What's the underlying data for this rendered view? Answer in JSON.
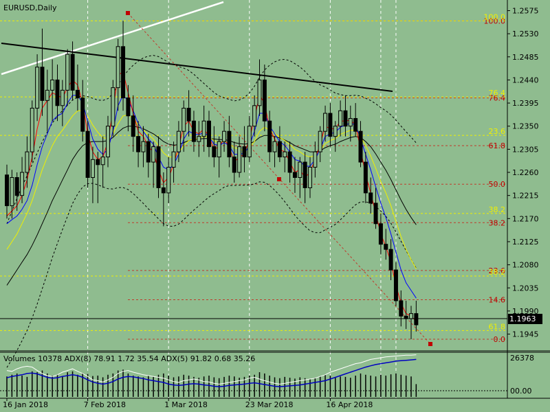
{
  "colors": {
    "background": "#8fbc8f",
    "grid": "#ffffff",
    "candle": "#000000",
    "fib_red": "#c0392b",
    "fib_yellow": "#f0f000",
    "ma_red": "#ff0000",
    "ma_blue": "#0000ff",
    "ma_yellow": "#f0f000",
    "ma_black": "#000000",
    "trend_white": "#ffffff",
    "volume_white": "#ffffff",
    "volume_blue": "#0000c0"
  },
  "chart_data": {
    "type": "candlestick",
    "symbol_label": "EURUSD,Daily",
    "price_axis": {
      "min": 1.1923,
      "max": 1.2585,
      "ticks": [
        "1.2575",
        "1.2530",
        "1.2485",
        "1.2440",
        "1.2395",
        "1.2350",
        "1.2305",
        "1.2260",
        "1.2215",
        "1.2170",
        "1.2125",
        "1.2080",
        "1.2035",
        "1.1990",
        "1.1945"
      ]
    },
    "current_price": "1.1963",
    "date_labels": [
      {
        "text": "16 Jan 2018",
        "index": 0
      },
      {
        "text": "7 Feb 2018",
        "index": 16
      },
      {
        "text": "1 Mar 2018",
        "index": 32
      },
      {
        "text": "23 Mar 2018",
        "index": 48
      },
      {
        "text": "16 Apr 2018",
        "index": 64
      }
    ],
    "vertical_grid_indices": [
      16,
      32,
      48,
      64,
      74,
      77
    ],
    "candles": [
      [
        1.2255,
        1.2275,
        1.217,
        1.2195
      ],
      [
        1.2195,
        1.2265,
        1.217,
        1.225
      ],
      [
        1.225,
        1.226,
        1.2185,
        1.2215
      ],
      [
        1.2215,
        1.229,
        1.22,
        1.226
      ],
      [
        1.226,
        1.233,
        1.223,
        1.23
      ],
      [
        1.23,
        1.24,
        1.228,
        1.2385
      ],
      [
        1.2385,
        1.249,
        1.236,
        1.2465
      ],
      [
        1.2465,
        1.254,
        1.237,
        1.24
      ],
      [
        1.24,
        1.246,
        1.234,
        1.242
      ],
      [
        1.242,
        1.248,
        1.236,
        1.244
      ],
      [
        1.244,
        1.247,
        1.236,
        1.239
      ],
      [
        1.239,
        1.244,
        1.235,
        1.242
      ],
      [
        1.242,
        1.25,
        1.239,
        1.249
      ],
      [
        1.249,
        1.2515,
        1.24,
        1.242
      ],
      [
        1.242,
        1.247,
        1.238,
        1.2405
      ],
      [
        1.2405,
        1.244,
        1.232,
        1.234
      ],
      [
        1.234,
        1.236,
        1.223,
        1.225
      ],
      [
        1.225,
        1.231,
        1.22,
        1.2285
      ],
      [
        1.2285,
        1.23,
        1.22,
        1.2275
      ],
      [
        1.2275,
        1.233,
        1.223,
        1.229
      ],
      [
        1.229,
        1.237,
        1.227,
        1.235
      ],
      [
        1.235,
        1.244,
        1.233,
        1.2425
      ],
      [
        1.2425,
        1.252,
        1.238,
        1.2505
      ],
      [
        1.2505,
        1.2555,
        1.238,
        1.2405
      ],
      [
        1.2405,
        1.243,
        1.234,
        1.237
      ],
      [
        1.237,
        1.241,
        1.23,
        1.233
      ],
      [
        1.233,
        1.236,
        1.227,
        1.23
      ],
      [
        1.23,
        1.235,
        1.227,
        1.232
      ],
      [
        1.232,
        1.2335,
        1.225,
        1.228
      ],
      [
        1.228,
        1.232,
        1.223,
        1.231
      ],
      [
        1.231,
        1.233,
        1.221,
        1.223
      ],
      [
        1.223,
        1.226,
        1.2155,
        1.222
      ],
      [
        1.222,
        1.229,
        1.22,
        1.227
      ],
      [
        1.227,
        1.232,
        1.224,
        1.23
      ],
      [
        1.23,
        1.236,
        1.228,
        1.234
      ],
      [
        1.234,
        1.24,
        1.23,
        1.2385
      ],
      [
        1.2385,
        1.242,
        1.233,
        1.236
      ],
      [
        1.236,
        1.238,
        1.23,
        1.232
      ],
      [
        1.232,
        1.236,
        1.229,
        1.233
      ],
      [
        1.233,
        1.239,
        1.23,
        1.236
      ],
      [
        1.236,
        1.238,
        1.229,
        1.231
      ],
      [
        1.231,
        1.235,
        1.227,
        1.229
      ],
      [
        1.229,
        1.233,
        1.225,
        1.232
      ],
      [
        1.232,
        1.236,
        1.23,
        1.234
      ],
      [
        1.234,
        1.237,
        1.227,
        1.229
      ],
      [
        1.229,
        1.232,
        1.224,
        1.226
      ],
      [
        1.226,
        1.233,
        1.225,
        1.231
      ],
      [
        1.231,
        1.235,
        1.226,
        1.229
      ],
      [
        1.229,
        1.237,
        1.228,
        1.235
      ],
      [
        1.235,
        1.241,
        1.233,
        1.239
      ],
      [
        1.239,
        1.248,
        1.237,
        1.244
      ],
      [
        1.244,
        1.247,
        1.234,
        1.236
      ],
      [
        1.236,
        1.238,
        1.228,
        1.23
      ],
      [
        1.23,
        1.233,
        1.227,
        1.232
      ],
      [
        1.232,
        1.235,
        1.228,
        1.229
      ],
      [
        1.229,
        1.232,
        1.226,
        1.23
      ],
      [
        1.23,
        1.232,
        1.224,
        1.226
      ],
      [
        1.226,
        1.229,
        1.222,
        1.225
      ],
      [
        1.225,
        1.229,
        1.221,
        1.228
      ],
      [
        1.228,
        1.23,
        1.22,
        1.223
      ],
      [
        1.223,
        1.229,
        1.221,
        1.227
      ],
      [
        1.227,
        1.232,
        1.225,
        1.23
      ],
      [
        1.23,
        1.235,
        1.228,
        1.234
      ],
      [
        1.234,
        1.239,
        1.232,
        1.2375
      ],
      [
        1.2375,
        1.2395,
        1.231,
        1.233
      ],
      [
        1.233,
        1.236,
        1.23,
        1.235
      ],
      [
        1.235,
        1.24,
        1.233,
        1.238
      ],
      [
        1.238,
        1.241,
        1.233,
        1.235
      ],
      [
        1.235,
        1.239,
        1.232,
        1.2365
      ],
      [
        1.2365,
        1.2395,
        1.233,
        1.234
      ],
      [
        1.234,
        1.236,
        1.227,
        1.228
      ],
      [
        1.228,
        1.23,
        1.22,
        1.222
      ],
      [
        1.222,
        1.225,
        1.218,
        1.22
      ],
      [
        1.22,
        1.223,
        1.215,
        1.216
      ],
      [
        1.216,
        1.218,
        1.21,
        1.212
      ],
      [
        1.212,
        1.215,
        1.209,
        1.211
      ],
      [
        1.211,
        1.213,
        1.205,
        1.207
      ],
      [
        1.207,
        1.2085,
        1.2,
        1.201
      ],
      [
        1.201,
        1.203,
        1.196,
        1.198
      ],
      [
        1.198,
        1.201,
        1.1955,
        1.1975
      ],
      [
        1.1975,
        1.2,
        1.1935,
        1.1985
      ],
      [
        1.1985,
        1.201,
        1.195,
        1.1963
      ]
    ],
    "indicators": {
      "ma_fast_red": [
        1.2175,
        1.2185,
        1.2195,
        1.2215,
        1.2245,
        1.229,
        1.2345,
        1.2385,
        1.24,
        1.2415,
        1.241,
        1.2405,
        1.2425,
        1.244,
        1.243,
        1.2395,
        1.2335,
        1.23,
        1.2285,
        1.229,
        1.232,
        1.238,
        1.245,
        1.2455,
        1.2415,
        1.2375,
        1.234,
        1.233,
        1.231,
        1.23,
        1.2265,
        1.224,
        1.225,
        1.2275,
        1.231,
        1.235,
        1.236,
        1.234,
        1.2335,
        1.2345,
        1.233,
        1.2305,
        1.231,
        1.2325,
        1.231,
        1.228,
        1.229,
        1.2295,
        1.2325,
        1.2365,
        1.241,
        1.2395,
        1.2345,
        1.2325,
        1.2305,
        1.23,
        1.228,
        1.226,
        1.2265,
        1.225,
        1.226,
        1.2285,
        1.2315,
        1.235,
        1.2345,
        1.2345,
        1.236,
        1.236,
        1.2362,
        1.2352,
        1.2305,
        1.2255,
        1.222,
        1.218,
        1.214,
        1.2115,
        1.2085,
        1.204,
        1.2005,
        1.1985,
        1.198,
        1.197
      ],
      "ma_mid_blue": [
        1.216,
        1.2168,
        1.2175,
        1.2188,
        1.2205,
        1.2235,
        1.2275,
        1.231,
        1.2335,
        1.236,
        1.237,
        1.2375,
        1.2395,
        1.241,
        1.241,
        1.2395,
        1.236,
        1.2325,
        1.2305,
        1.2295,
        1.2305,
        1.234,
        1.239,
        1.241,
        1.24,
        1.238,
        1.2355,
        1.234,
        1.2325,
        1.2315,
        1.229,
        1.227,
        1.2265,
        1.2275,
        1.2295,
        1.2325,
        1.234,
        1.2335,
        1.2333,
        1.2338,
        1.233,
        1.2315,
        1.2312,
        1.2318,
        1.2312,
        1.2295,
        1.2295,
        1.2297,
        1.2312,
        1.234,
        1.2375,
        1.2375,
        1.235,
        1.2335,
        1.232,
        1.2312,
        1.23,
        1.2285,
        1.2282,
        1.2272,
        1.2272,
        1.2285,
        1.2305,
        1.233,
        1.2335,
        1.2338,
        1.2348,
        1.2352,
        1.2356,
        1.2352,
        1.2325,
        1.2295,
        1.2265,
        1.2232,
        1.22,
        1.2172,
        1.214,
        1.2105,
        1.207,
        1.2045,
        1.203,
        1.2015
      ],
      "ma_slow_yellow": [
        1.211,
        1.2125,
        1.214,
        1.216,
        1.218,
        1.2205,
        1.2235,
        1.2265,
        1.229,
        1.2312,
        1.233,
        1.2342,
        1.2356,
        1.237,
        1.238,
        1.238,
        1.237,
        1.2352,
        1.2338,
        1.2328,
        1.2325,
        1.2335,
        1.2355,
        1.237,
        1.2372,
        1.2365,
        1.2352,
        1.2343,
        1.2333,
        1.2325,
        1.2312,
        1.2298,
        1.229,
        1.229,
        1.2298,
        1.2312,
        1.2322,
        1.2325,
        1.2326,
        1.233,
        1.2328,
        1.2322,
        1.2318,
        1.232,
        1.2316,
        1.2308,
        1.2305,
        1.2303,
        1.2308,
        1.232,
        1.234,
        1.2348,
        1.2342,
        1.2336,
        1.2328,
        1.2322,
        1.2314,
        1.2305,
        1.23,
        1.2293,
        1.229,
        1.2293,
        1.2302,
        1.2316,
        1.2322,
        1.2326,
        1.2334,
        1.2338,
        1.2342,
        1.2342,
        1.233,
        1.2312,
        1.2292,
        1.2268,
        1.2242,
        1.222,
        1.2195,
        1.2165,
        1.2135,
        1.211,
        1.209,
        1.2072
      ],
      "ma_long_black": [
        1.204,
        1.2055,
        1.207,
        1.2085,
        1.21,
        1.2118,
        1.2138,
        1.216,
        1.2182,
        1.2205,
        1.2225,
        1.2245,
        1.2265,
        1.2285,
        1.23,
        1.2312,
        1.2318,
        1.232,
        1.232,
        1.232,
        1.2322,
        1.2328,
        1.2338,
        1.2346,
        1.235,
        1.235,
        1.2348,
        1.2345,
        1.234,
        1.2335,
        1.2328,
        1.232,
        1.2315,
        1.2313,
        1.2314,
        1.2318,
        1.2322,
        1.2324,
        1.2325,
        1.2326,
        1.2326,
        1.2325,
        1.2324,
        1.2324,
        1.2322,
        1.2318,
        1.2316,
        1.2315,
        1.2316,
        1.232,
        1.2328,
        1.2332,
        1.2332,
        1.233,
        1.2327,
        1.2323,
        1.2318,
        1.2312,
        1.2308,
        1.2304,
        1.23,
        1.23,
        1.2302,
        1.2308,
        1.2312,
        1.2315,
        1.232,
        1.2324,
        1.2328,
        1.233,
        1.2328,
        1.232,
        1.231,
        1.2296,
        1.228,
        1.2264,
        1.2246,
        1.2226,
        1.2206,
        1.2188,
        1.2172,
        1.2158
      ]
    },
    "fibonacci_red": [
      {
        "label": "100.0",
        "price": 1.2555
      },
      {
        "label": "76.4",
        "price": 1.2405
      },
      {
        "label": "61.8",
        "price": 1.2312
      },
      {
        "label": "50.0",
        "price": 1.2237
      },
      {
        "label": "38.2",
        "price": 1.2162
      },
      {
        "label": "23.6",
        "price": 1.2069
      },
      {
        "label": "14.6",
        "price": 1.2012
      },
      {
        "label": "0.0",
        "price": 1.1935
      }
    ],
    "fibonacci_yellow": [
      {
        "label": "100.0",
        "price": 1.2555
      },
      {
        "label": "76.4",
        "price": 1.2407
      },
      {
        "label": "61.8",
        "price": 1.1952
      },
      {
        "label": "38.2",
        "price": 1.218
      },
      {
        "label": "23.6",
        "price": 1.2332
      },
      {
        "label": "38.2",
        "price": 1.2058
      }
    ],
    "volume_indicator": {
      "label": "Volumes 10378 ADX(8) 78.91 1.72 35.54 ADX(5) 91.82 0.68 35.26",
      "axis_top": "26378",
      "axis_bottom": "00.00",
      "volumes": [
        0.48,
        0.52,
        0.55,
        0.5,
        0.47,
        0.6,
        0.58,
        0.62,
        0.55,
        0.5,
        0.53,
        0.49,
        0.58,
        0.6,
        0.52,
        0.56,
        0.54,
        0.49,
        0.5,
        0.46,
        0.52,
        0.55,
        0.62,
        0.64,
        0.55,
        0.5,
        0.48,
        0.46,
        0.5,
        0.47,
        0.52,
        0.55,
        0.5,
        0.46,
        0.48,
        0.52,
        0.5,
        0.47,
        0.45,
        0.48,
        0.5,
        0.46,
        0.44,
        0.47,
        0.5,
        0.48,
        0.45,
        0.47,
        0.5,
        0.52,
        0.58,
        0.55,
        0.5,
        0.46,
        0.44,
        0.47,
        0.45,
        0.43,
        0.46,
        0.44,
        0.42,
        0.45,
        0.48,
        0.52,
        0.5,
        0.46,
        0.48,
        0.47,
        0.45,
        0.5,
        0.55,
        0.52,
        0.5,
        0.48,
        0.52,
        0.5,
        0.53,
        0.55,
        0.52,
        0.5,
        0.48,
        0.3
      ],
      "line_white": [
        0.62,
        0.6,
        0.66,
        0.7,
        0.72,
        0.7,
        0.62,
        0.55,
        0.5,
        0.48,
        0.52,
        0.58,
        0.62,
        0.66,
        0.6,
        0.55,
        0.48,
        0.4,
        0.38,
        0.35,
        0.4,
        0.46,
        0.55,
        0.6,
        0.62,
        0.58,
        0.55,
        0.52,
        0.5,
        0.48,
        0.46,
        0.44,
        0.4,
        0.36,
        0.34,
        0.38,
        0.4,
        0.42,
        0.4,
        0.36,
        0.35,
        0.32,
        0.3,
        0.32,
        0.34,
        0.36,
        0.38,
        0.4,
        0.44,
        0.46,
        0.42,
        0.38,
        0.35,
        0.32,
        0.3,
        0.32,
        0.34,
        0.36,
        0.38,
        0.4,
        0.42,
        0.44,
        0.48,
        0.52,
        0.58,
        0.62,
        0.66,
        0.7,
        0.74,
        0.78,
        0.8,
        0.84,
        0.88,
        0.9,
        0.92,
        0.94,
        0.95,
        0.96,
        0.97,
        0.98,
        0.98,
        0.99
      ],
      "line_blue": [
        0.45,
        0.48,
        0.5,
        0.52,
        0.55,
        0.56,
        0.54,
        0.5,
        0.46,
        0.44,
        0.45,
        0.48,
        0.5,
        0.52,
        0.5,
        0.46,
        0.4,
        0.35,
        0.32,
        0.3,
        0.32,
        0.36,
        0.42,
        0.46,
        0.48,
        0.47,
        0.45,
        0.43,
        0.4,
        0.38,
        0.36,
        0.34,
        0.3,
        0.28,
        0.27,
        0.28,
        0.3,
        0.31,
        0.3,
        0.28,
        0.27,
        0.25,
        0.24,
        0.25,
        0.27,
        0.28,
        0.29,
        0.3,
        0.32,
        0.33,
        0.31,
        0.29,
        0.27,
        0.25,
        0.24,
        0.25,
        0.26,
        0.27,
        0.28,
        0.3,
        0.32,
        0.34,
        0.36,
        0.38,
        0.42,
        0.46,
        0.5,
        0.54,
        0.58,
        0.62,
        0.66,
        0.7,
        0.73,
        0.76,
        0.78,
        0.8,
        0.82,
        0.84,
        0.85,
        0.86,
        0.87,
        0.88
      ]
    }
  }
}
